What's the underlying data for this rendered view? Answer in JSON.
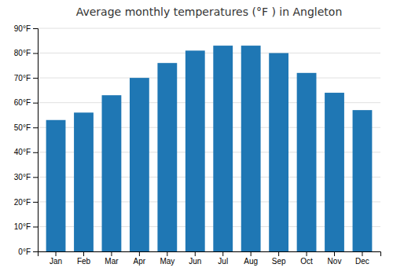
{
  "chart_data": {
    "type": "bar",
    "title": "Average monthly temperatures (°F ) in Angleton",
    "categories": [
      "Jan",
      "Feb",
      "Mar",
      "Apr",
      "May",
      "Jun",
      "Jul",
      "Aug",
      "Sep",
      "Oct",
      "Nov",
      "Dec"
    ],
    "values": [
      53,
      56,
      63,
      70,
      76,
      81,
      83,
      83,
      80,
      72,
      64,
      57
    ],
    "ylim": [
      0,
      90
    ],
    "yticks": [
      {
        "value": 0,
        "label": "0°F"
      },
      {
        "value": 10,
        "label": "10°F"
      },
      {
        "value": 20,
        "label": "20°F"
      },
      {
        "value": 30,
        "label": "30°F"
      },
      {
        "value": 40,
        "label": "40°F"
      },
      {
        "value": 50,
        "label": "50°F"
      },
      {
        "value": 60,
        "label": "60°F"
      },
      {
        "value": 70,
        "label": "70°F"
      },
      {
        "value": 80,
        "label": "80°F"
      },
      {
        "value": 90,
        "label": "90°F"
      }
    ],
    "grid": true
  }
}
